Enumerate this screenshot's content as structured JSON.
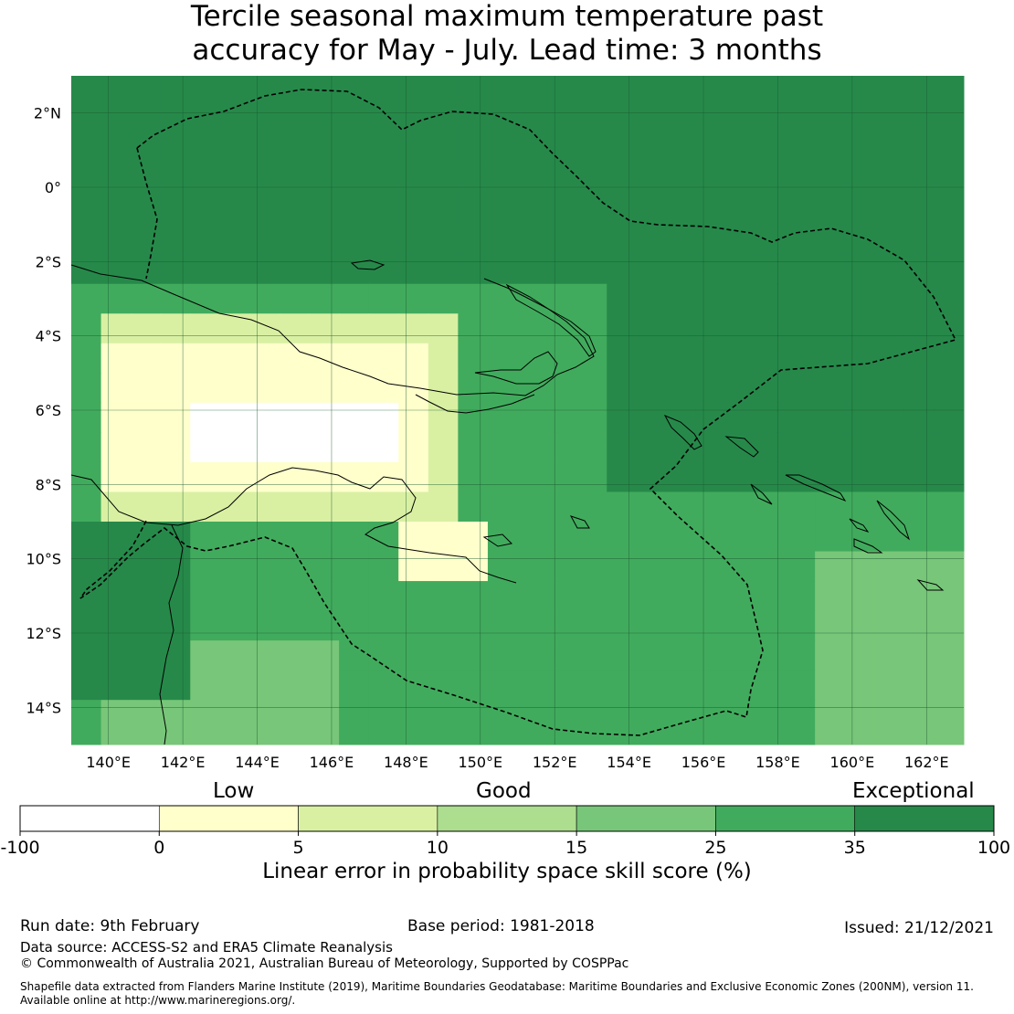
{
  "title": {
    "line1": "Tercile seasonal maximum temperature past",
    "line2": "accuracy for May - July. Lead time: 3 months"
  },
  "map": {
    "lon_range": [
      139,
      163
    ],
    "lat_range": [
      -15,
      3
    ],
    "lon_ticks": [
      "140°E",
      "142°E",
      "144°E",
      "146°E",
      "148°E",
      "150°E",
      "152°E",
      "154°E",
      "156°E",
      "158°E",
      "160°E",
      "162°E"
    ],
    "lat_ticks": [
      "2°N",
      "0°",
      "2°S",
      "4°S",
      "6°S",
      "8°S",
      "10°S",
      "12°S",
      "14°S"
    ],
    "colors": {
      "exceptional": "#26894a",
      "very_good": "#41ab5d",
      "good": "#78c679",
      "fair": "#addd8e",
      "low": "#d9f0a3",
      "very_low": "#ffffcc",
      "none": "#ffffff"
    }
  },
  "colorbar": {
    "category_labels": [
      "Low",
      "Good",
      "Exceptional"
    ],
    "ticks": [
      "-100",
      "0",
      "5",
      "10",
      "15",
      "25",
      "35",
      "100"
    ],
    "colors": [
      "#ffffff",
      "#ffffcc",
      "#d9f0a3",
      "#addd8e",
      "#78c679",
      "#41ab5d",
      "#26894a"
    ],
    "label": "Linear error in probability space skill score (%)"
  },
  "footer": {
    "run_date": "Run date: 9th February",
    "base_period": "Base period: 1981-2018",
    "issued": "Issued: 21/12/2021",
    "data_source": "Data source: ACCESS-S2 and ERA5 Climate Reanalysis",
    "copyright": "© Commonwealth of Australia 2021, Australian Bureau of Meteorology, Supported by COSPPac",
    "shapefile_line1": "Shapefile data extracted from Flanders Marine Institute (2019), Maritime Boundaries Geodatabase: Maritime Boundaries and Exclusive Economic Zones (200NM), version 11.",
    "shapefile_line2": "Available online at http://www.marineregions.org/."
  }
}
